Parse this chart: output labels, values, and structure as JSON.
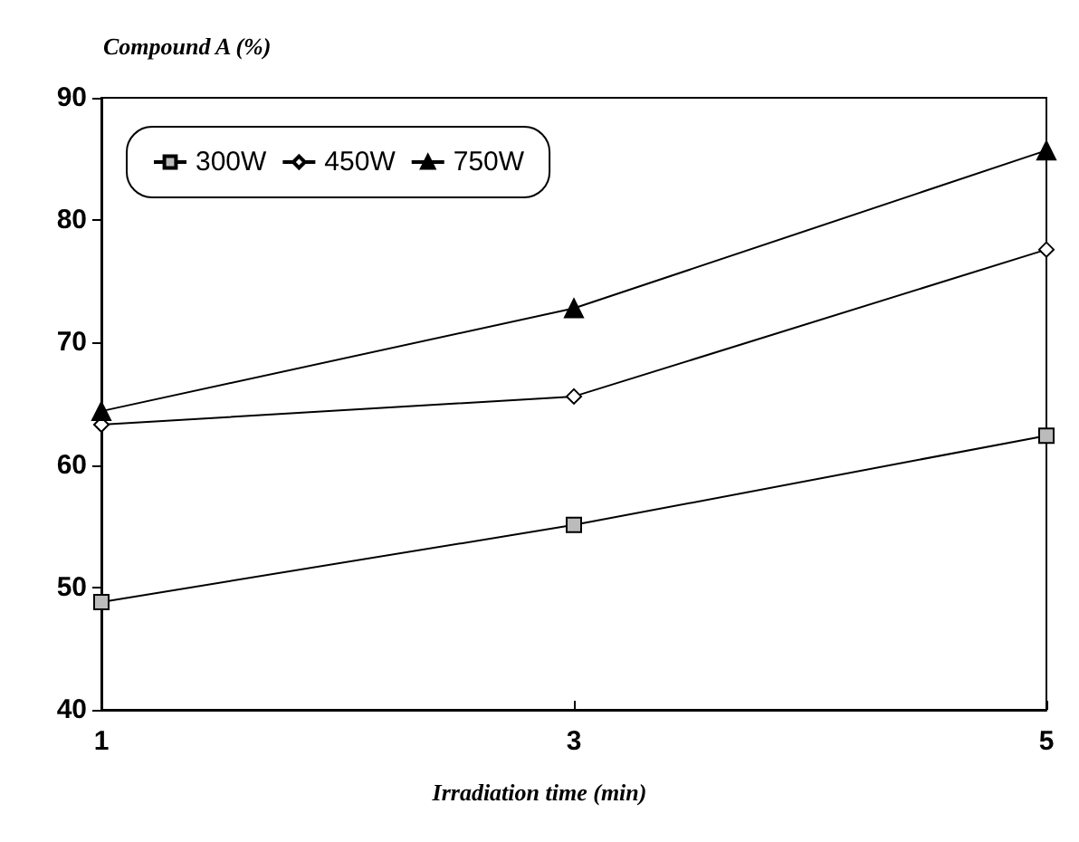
{
  "chart_data": {
    "type": "line",
    "ylabel": "Compound A (%)",
    "xlabel": "Irradiation time (min)",
    "x": [
      1,
      3,
      5
    ],
    "xlim": [
      1,
      5
    ],
    "xticks": [
      1,
      3,
      5
    ],
    "ylim": [
      40,
      90
    ],
    "yticks": [
      40,
      50,
      60,
      70,
      80,
      90
    ],
    "grid": false,
    "legend": "top left",
    "series": [
      {
        "name": "300W",
        "color": "#000000",
        "marker": "square",
        "values": [
          48.8,
          55.1,
          62.4
        ]
      },
      {
        "name": "450W",
        "color": "#000000",
        "marker": "diamond",
        "values": [
          63.3,
          65.6,
          77.6
        ]
      },
      {
        "name": "750W",
        "color": "#000000",
        "marker": "triangle",
        "values": [
          64.4,
          72.8,
          85.7
        ]
      }
    ]
  }
}
